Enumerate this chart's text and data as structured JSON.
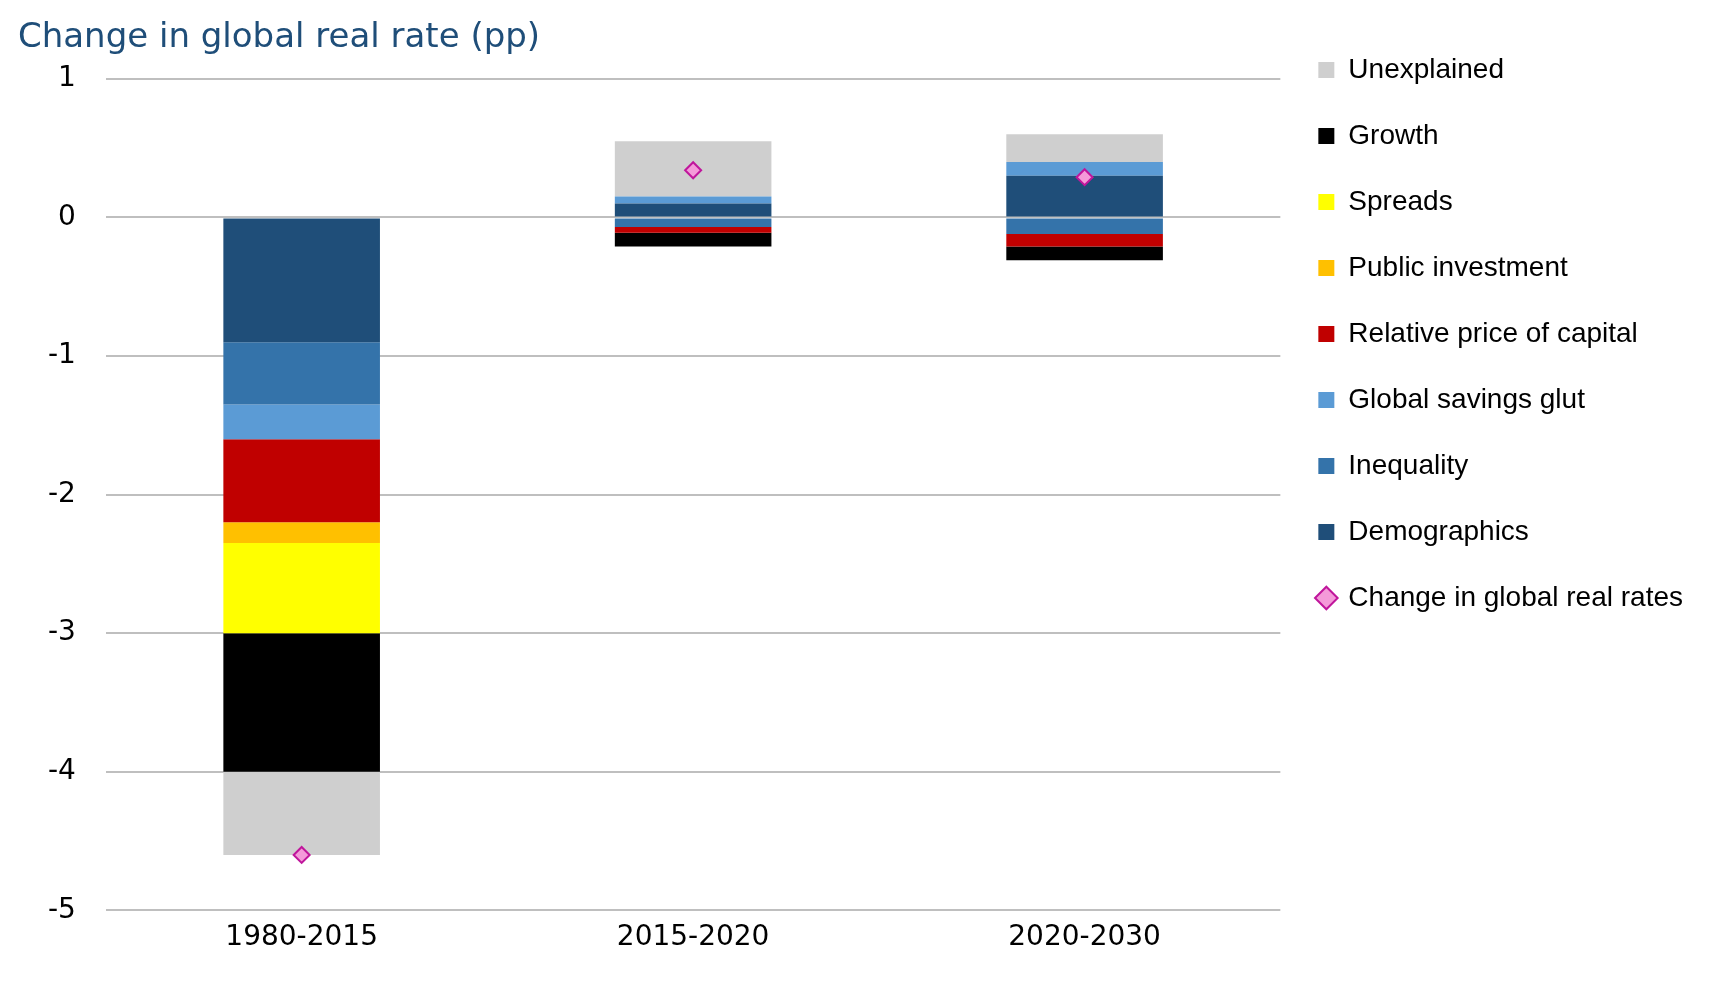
{
  "chart_data": {
    "type": "bar",
    "title": "Change in global real rate (pp)",
    "stacked": true,
    "categories": [
      "1980-2015",
      "2015-2020",
      "2020-2030"
    ],
    "series": [
      {
        "name": "Demographics",
        "color": "#1f4e79",
        "values": [
          -0.9,
          0.1,
          0.3
        ]
      },
      {
        "name": "Inequality",
        "color": "#3473aa",
        "values": [
          -0.45,
          -0.07,
          -0.12
        ]
      },
      {
        "name": "Global savings glut",
        "color": "#5b9bd5",
        "values": [
          -0.25,
          0.05,
          0.1
        ]
      },
      {
        "name": "Relative price of capital",
        "color": "#c00000",
        "values": [
          -0.6,
          -0.04,
          -0.09
        ]
      },
      {
        "name": "Public investment",
        "color": "#ffc000",
        "values": [
          -0.15,
          null,
          null
        ]
      },
      {
        "name": "Spreads",
        "color": "#ffff00",
        "values": [
          -0.65,
          null,
          null
        ]
      },
      {
        "name": "Growth",
        "color": "#000000",
        "values": [
          -1.0,
          -0.1,
          -0.1
        ]
      },
      {
        "name": "Unexplained",
        "color": "#cfcfcf",
        "values": [
          -0.6,
          0.4,
          0.2
        ]
      },
      {
        "name": "Change in global real rates",
        "type": "scatter",
        "marker": "diamond",
        "color": "#f49ad9",
        "x": [
          "1980-2015",
          "2015-2020",
          "2020-2030"
        ],
        "values": [
          -4.6,
          0.34,
          0.29
        ]
      }
    ],
    "ylim": [
      -5,
      1
    ],
    "yticks": [
      -5,
      -4,
      -3,
      -2,
      -1,
      0,
      1
    ],
    "grid": "y",
    "legend": "right"
  }
}
